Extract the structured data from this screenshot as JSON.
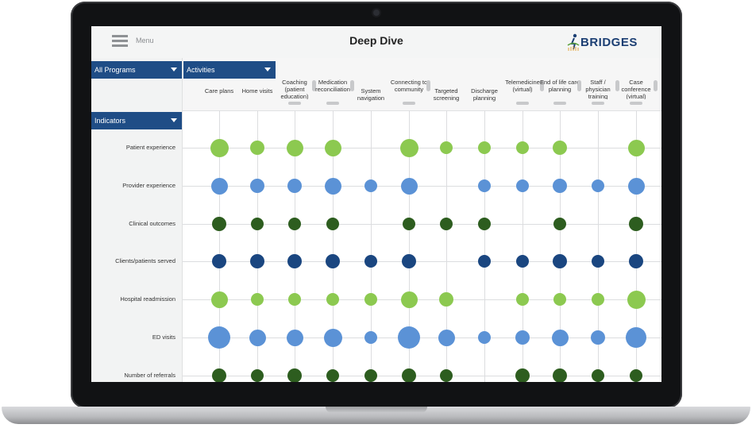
{
  "app": {
    "menu_label": "Menu",
    "title": "Deep Dive",
    "logo_text": "BRIDGES"
  },
  "filters": {
    "programs": "All Programs",
    "activities": "Activities",
    "indicators": "Indicators"
  },
  "colors": {
    "light_green": "#8cc950",
    "light_blue": "#5b92d6",
    "dark_green": "#2d5d1f",
    "dark_blue": "#1a4680",
    "header_blue": "#1f4d86"
  },
  "columns": [
    {
      "label": "Care plans"
    },
    {
      "label": "Home visits"
    },
    {
      "label": "Coaching (patient education)"
    },
    {
      "label": "Medication reconciliation"
    },
    {
      "label": "System navigation"
    },
    {
      "label": "Connecting to community"
    },
    {
      "label": "Targeted screening"
    },
    {
      "label": "Discharge planning"
    },
    {
      "label": "Telemedicine (virtual)"
    },
    {
      "label": "End of life care planning"
    },
    {
      "label": "Staff / physician training"
    },
    {
      "label": "Case conference (virtual)"
    }
  ],
  "rows": [
    {
      "label": "Patient experience",
      "color": "light_green",
      "sizes": [
        3,
        2,
        2.5,
        2.5,
        0,
        3,
        1.5,
        1.5,
        1.5,
        2,
        0,
        2.5
      ]
    },
    {
      "label": "Provider experience",
      "color": "light_blue",
      "sizes": [
        2.5,
        2,
        2,
        2.5,
        1.5,
        2.5,
        0,
        1.5,
        1.5,
        2,
        1.5,
        2.5
      ]
    },
    {
      "label": "Clinical outcomes",
      "color": "dark_green",
      "sizes": [
        2,
        1.5,
        1.5,
        1.5,
        0,
        1.5,
        1.5,
        1.5,
        0,
        1.5,
        0,
        2
      ]
    },
    {
      "label": "Clients/patients served",
      "color": "dark_blue",
      "sizes": [
        2,
        2,
        2,
        2,
        1.5,
        2,
        0,
        1.5,
        1.5,
        2,
        1.5,
        2
      ]
    },
    {
      "label": "Hospital readmission",
      "color": "light_green",
      "sizes": [
        2.5,
        1.5,
        1.5,
        1.5,
        1.5,
        2.5,
        2,
        0,
        1.5,
        1.5,
        1.5,
        3
      ]
    },
    {
      "label": "ED visits",
      "color": "light_blue",
      "sizes": [
        4,
        2.5,
        2.5,
        3,
        1.5,
        4,
        2.5,
        1.5,
        2,
        2.5,
        2,
        3.5
      ]
    },
    {
      "label": "Number of referrals",
      "color": "dark_green",
      "sizes": [
        2,
        1.5,
        2,
        1.5,
        1.5,
        2,
        1.5,
        0,
        2,
        2,
        1.5,
        1.5
      ]
    }
  ]
}
